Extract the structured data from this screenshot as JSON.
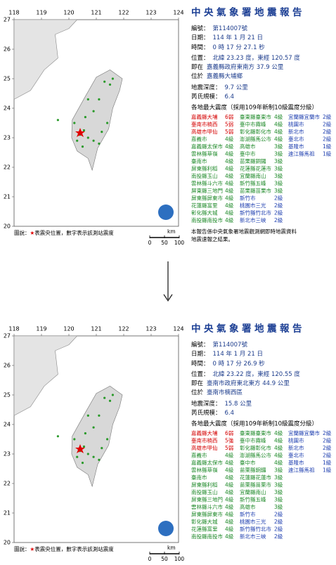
{
  "reports": [
    {
      "title": "中央氣象署地震報告",
      "fields": [
        {
          "label": "編號：",
          "value": "第114007號"
        },
        {
          "label": "日期：",
          "value": "114 年 1 月 21 日"
        },
        {
          "label": "時間：",
          "value": "0 時 17 分 27.1 秒"
        },
        {
          "label": "位置：",
          "value": "北緯 23.23 度，東經 120.57 度"
        },
        {
          "label": "即在",
          "value": "嘉義縣政府東南方 37.9 公里"
        },
        {
          "label": "位於",
          "value": "嘉義縣大埔鄉"
        },
        {
          "label": "地震深度：",
          "value": "9.7 公里"
        },
        {
          "label": "芮氏規模：",
          "value": "6.4"
        }
      ],
      "intensity_heading": "各地最大震度（採用109年新制10級震度分級）",
      "columns": [
        [
          {
            "name": "嘉義縣大埔",
            "level": "6弱"
          },
          {
            "name": "臺南市楠西",
            "level": "5弱"
          },
          {
            "name": "高雄市甲仙",
            "level": "5弱"
          },
          {
            "name": "嘉義市",
            "level": "4級"
          },
          {
            "name": "嘉義縣太保市",
            "level": "4級"
          },
          {
            "name": "雲林縣草嶺",
            "level": "4級"
          },
          {
            "name": "臺南市",
            "level": "4級"
          },
          {
            "name": "屏東縣利稻",
            "level": "4級"
          },
          {
            "name": "南投縣玉山",
            "level": "4級"
          },
          {
            "name": "雲林縣斗六市",
            "level": "4級"
          },
          {
            "name": "屏東縣三地門",
            "level": "4級"
          },
          {
            "name": "屏東縣屏東市",
            "level": "4級"
          },
          {
            "name": "花蓮縣富里",
            "level": "4級"
          },
          {
            "name": "彰化縣大城",
            "level": "4級"
          },
          {
            "name": "南投縣南投市",
            "level": "4級"
          }
        ],
        [
          {
            "name": "臺東縣臺東市",
            "level": "4級"
          },
          {
            "name": "臺中市霧峰",
            "level": "4級"
          },
          {
            "name": "彰化縣彰化市",
            "level": "4級"
          },
          {
            "name": "澎湖縣馬公市",
            "level": "4級"
          },
          {
            "name": "高雄市",
            "level": "3級"
          },
          {
            "name": "臺中市",
            "level": "3級"
          },
          {
            "name": "苗栗縣銅鑼",
            "level": "3級"
          },
          {
            "name": "花蓮縣花蓮市",
            "level": "3級"
          },
          {
            "name": "宜蘭縣南山",
            "level": "3級"
          },
          {
            "name": "新竹縣五峰",
            "level": "3級"
          },
          {
            "name": "苗栗縣苗栗市",
            "level": "3級"
          },
          {
            "name": "新竹市",
            "level": "2級"
          },
          {
            "name": "桃園市三光",
            "level": "2級"
          },
          {
            "name": "新竹縣竹北市",
            "level": "2級"
          },
          {
            "name": "新北市三峽",
            "level": "2級"
          }
        ],
        [
          {
            "name": "宜蘭縣宜蘭市",
            "level": "2級"
          },
          {
            "name": "桃園市",
            "level": "2級"
          },
          {
            "name": "新北市",
            "level": "2級"
          },
          {
            "name": "臺北市",
            "level": "2級"
          },
          {
            "name": "基隆市",
            "level": "1級"
          },
          {
            "name": "連江縣馬祖",
            "level": "1級"
          }
        ]
      ],
      "footer": [
        "本報告係中央氣象署地震觀測網即時地震資料",
        "地震速報之結果。"
      ],
      "map": {
        "xlim": [
          118,
          124
        ],
        "ylim": [
          20,
          27
        ],
        "xticks": [
          118,
          119,
          120,
          121,
          122,
          123,
          124
        ],
        "yticks": [
          20,
          21,
          22,
          23,
          24,
          25,
          26,
          27
        ],
        "legend": [
          "圖說：",
          "★",
          "表震央位置，數字表示該測站震度"
        ],
        "scale_unit": "km",
        "scale_ticks": [
          0,
          50,
          100
        ]
      }
    },
    {
      "title": "中央氣象署地震報告",
      "fields": [
        {
          "label": "編號：",
          "value": "第114007號"
        },
        {
          "label": "日期：",
          "value": "114 年 1 月 21 日"
        },
        {
          "label": "時間：",
          "value": "0 時 17 分 26.9 秒"
        },
        {
          "label": "位置：",
          "value": "北緯 23.22 度，東經 120.55 度"
        },
        {
          "label": "即在",
          "value": "臺南市政府東北東方 44.9 公里"
        },
        {
          "label": "位於",
          "value": "臺南市楠西區"
        },
        {
          "label": "地震深度：",
          "value": "15.8 公里"
        },
        {
          "label": "芮氏規模：",
          "value": "6.4"
        }
      ],
      "intensity_heading": "各地最大震度（採用109年新制10級震度分級）",
      "columns": [
        [
          {
            "name": "嘉義縣大埔",
            "level": "6弱"
          },
          {
            "name": "臺南市楠西",
            "level": "5強"
          },
          {
            "name": "高雄市甲仙",
            "level": "5弱"
          },
          {
            "name": "嘉義市",
            "level": "4級"
          },
          {
            "name": "嘉義縣太保市",
            "level": "4級"
          },
          {
            "name": "雲林縣草嶺",
            "level": "4級"
          },
          {
            "name": "臺南市",
            "level": "4級"
          },
          {
            "name": "屏東縣利稻",
            "level": "4級"
          },
          {
            "name": "南投縣玉山",
            "level": "4級"
          },
          {
            "name": "屏東縣三地門",
            "level": "4級"
          },
          {
            "name": "雲林縣斗六市",
            "level": "4級"
          },
          {
            "name": "屏東縣屏東市",
            "level": "4級"
          },
          {
            "name": "彰化縣大城",
            "level": "4級"
          },
          {
            "name": "花蓮縣富里",
            "level": "4級"
          },
          {
            "name": "南投縣南投市",
            "level": "4級"
          }
        ],
        [
          {
            "name": "臺東縣臺東市",
            "level": "4級"
          },
          {
            "name": "臺中市霧峰",
            "level": "4級"
          },
          {
            "name": "彰化縣彰化市",
            "level": "4級"
          },
          {
            "name": "澎湖縣馬公市",
            "level": "4級"
          },
          {
            "name": "臺中市",
            "level": "4級"
          },
          {
            "name": "苗栗縣銅鑼",
            "level": "3級"
          },
          {
            "name": "花蓮縣花蓮市",
            "level": "3級"
          },
          {
            "name": "苗栗縣苗栗市",
            "level": "3級"
          },
          {
            "name": "宜蘭縣南山",
            "level": "3級"
          },
          {
            "name": "新竹縣五峰",
            "level": "3級"
          },
          {
            "name": "高雄市",
            "level": "3級"
          },
          {
            "name": "新竹市",
            "level": "2級"
          },
          {
            "name": "桃園市三光",
            "level": "2級"
          },
          {
            "name": "新竹縣竹北市",
            "level": "2級"
          },
          {
            "name": "新北市三峽",
            "level": "2級"
          }
        ],
        [
          {
            "name": "宜蘭縣宜蘭市",
            "level": "2級"
          },
          {
            "name": "桃園市",
            "level": "2級"
          },
          {
            "name": "新北市",
            "level": "2級"
          },
          {
            "name": "臺北市",
            "level": "2級"
          },
          {
            "name": "基隆市",
            "level": "1級"
          },
          {
            "name": "連江縣馬祖",
            "level": "1級"
          }
        ]
      ],
      "map": {
        "xlim": [
          118,
          124
        ],
        "ylim": [
          20,
          27
        ],
        "xticks": [
          118,
          119,
          120,
          121,
          122,
          123,
          124
        ],
        "yticks": [
          20,
          21,
          22,
          23,
          24,
          25,
          26,
          27
        ],
        "legend": [
          "圖說：",
          "★",
          "表震央位置，數字表示該測站震度"
        ],
        "scale_unit": "km",
        "scale_ticks": [
          0,
          50,
          100
        ]
      }
    }
  ],
  "level_colors": {
    "6弱": "#d40000",
    "5強": "#d40000",
    "5弱": "#d40000",
    "4級": "#1f8a2a",
    "3級": "#1f8a2a",
    "2級": "#2040b0",
    "1級": "#2040b0"
  },
  "title_color": "#1c3f94",
  "value_color": "#1c3c8c"
}
